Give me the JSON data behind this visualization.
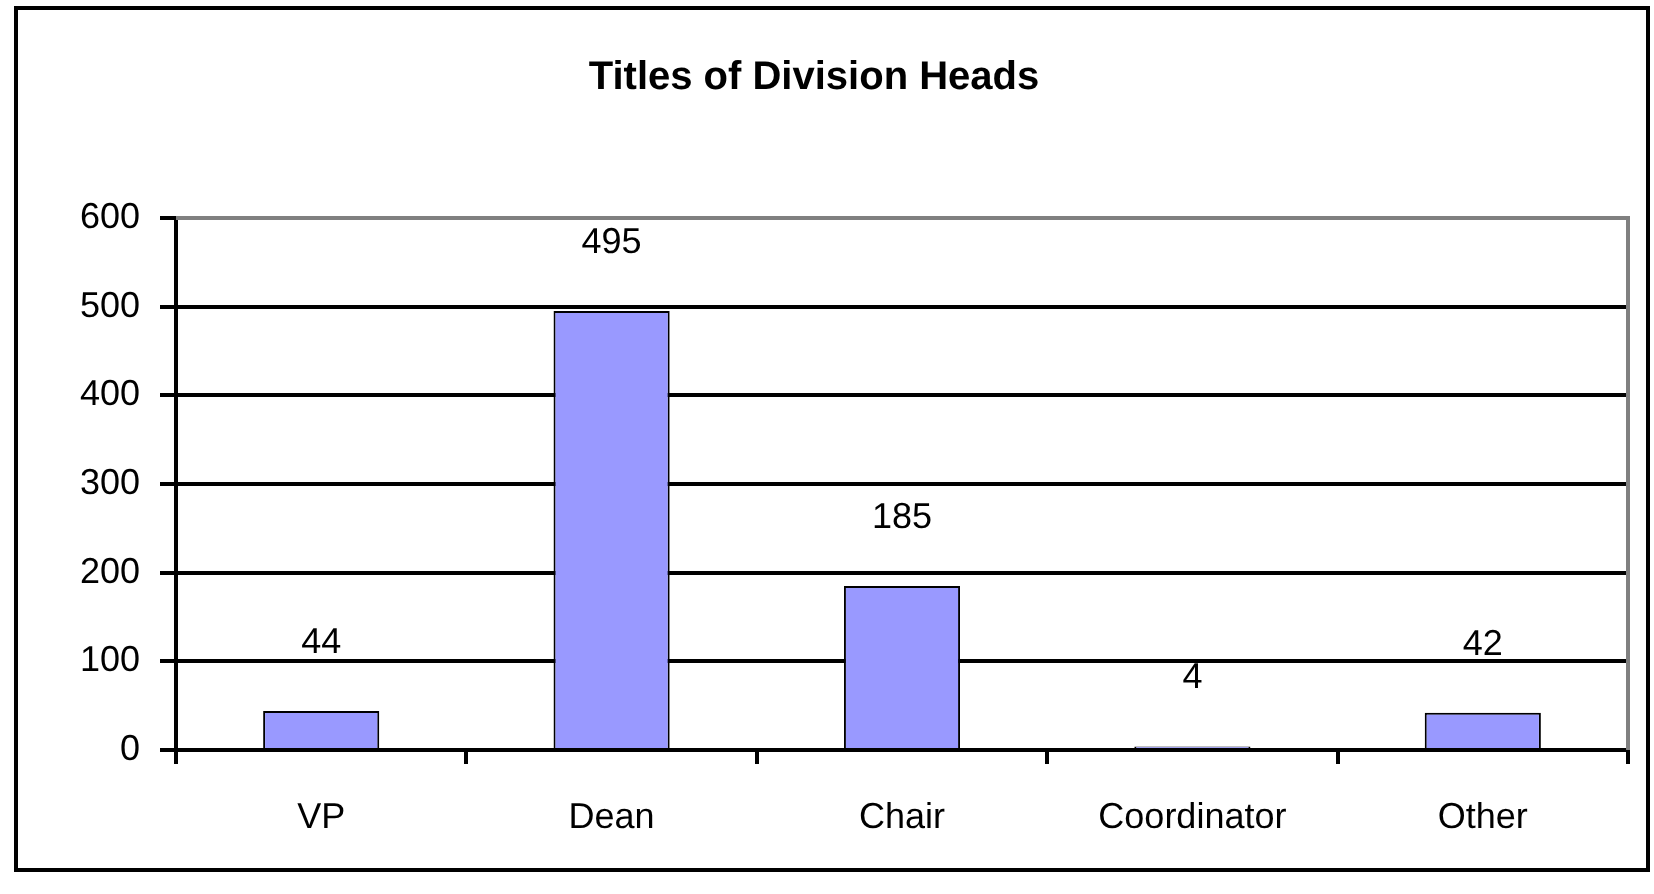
{
  "chart_data": {
    "type": "bar",
    "title": "Titles of Division Heads",
    "categories": [
      "VP",
      "Dean",
      "Chair",
      "Coordinator",
      "Other"
    ],
    "values": [
      44,
      495,
      185,
      4,
      42
    ],
    "color": "#9999ff",
    "ylim": [
      0,
      600
    ],
    "yticks": [
      0,
      100,
      200,
      300,
      400,
      500,
      600
    ],
    "grid": "y",
    "data_labels": true
  }
}
